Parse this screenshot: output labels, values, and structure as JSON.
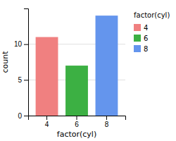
{
  "chart_data": {
    "type": "bar",
    "categories": [
      "4",
      "6",
      "8"
    ],
    "values": [
      11,
      7,
      14
    ],
    "colors": [
      "#F08080",
      "#3CB043",
      "#6495ED"
    ],
    "x_label": "factor(cyl)",
    "y_label": "count",
    "ylim": [
      0,
      15
    ],
    "yticks": [
      0,
      5,
      10
    ],
    "grid": true,
    "legend": "right",
    "legend_title": "factor(cyl)"
  }
}
